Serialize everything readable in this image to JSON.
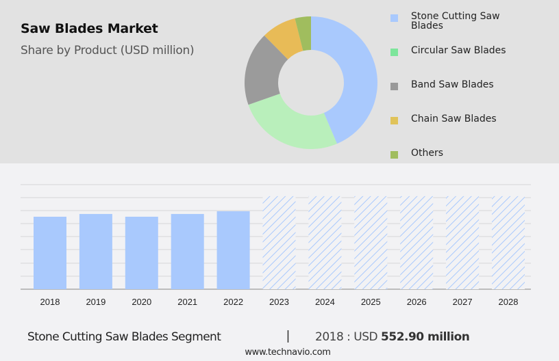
{
  "header": {
    "title": "Saw Blades Market",
    "subtitle": "Share by Product (USD million)"
  },
  "legend": [
    {
      "label": "Stone Cutting Saw Blades",
      "color": "#a9c9fd"
    },
    {
      "label": "Circular Saw Blades",
      "color": "#7de59b"
    },
    {
      "label": "Band Saw Blades",
      "color": "#999999"
    },
    {
      "label": "Chain Saw Blades",
      "color": "#e5c35a"
    },
    {
      "label": "Others",
      "color": "#a0bd5e"
    }
  ],
  "footer": {
    "segment": "Stone Cutting Saw Blades Segment",
    "separator": "|",
    "value_prefix": "2018 : USD",
    "value": "552.90 million",
    "website": "www.technavio.com"
  },
  "chart_data": [
    {
      "type": "pie",
      "title": "Saw Blades Market",
      "subtitle": "Share by Product (USD million)",
      "donut": true,
      "categories": [
        "Stone Cutting Saw Blades",
        "Circular Saw Blades",
        "Band Saw Blades",
        "Chain Saw Blades",
        "Others"
      ],
      "values": [
        43.6,
        26,
        18,
        8.5,
        3.9
      ],
      "colors": [
        "#a9c9fd",
        "#b9efbb",
        "#9b9b9b",
        "#e8bb57",
        "#a0bd5e"
      ],
      "legend_position": "right"
    },
    {
      "type": "bar",
      "title": "Stone Cutting Saw Blades Segment",
      "categories": [
        "2018",
        "2019",
        "2020",
        "2021",
        "2022",
        "2023",
        "2024",
        "2025",
        "2026",
        "2027",
        "2028"
      ],
      "values": [
        552.9,
        574,
        553,
        574,
        595,
        710,
        710,
        710,
        710,
        710,
        710
      ],
      "forecast_from": "2023",
      "xlabel": "",
      "ylabel": "",
      "ylim": [
        0,
        800
      ],
      "grid": true,
      "annotation": "2018 : USD 552.90 million",
      "colors": {
        "actual": "#a9c9fd",
        "forecast_hatch": "#a9c9fd"
      }
    }
  ]
}
